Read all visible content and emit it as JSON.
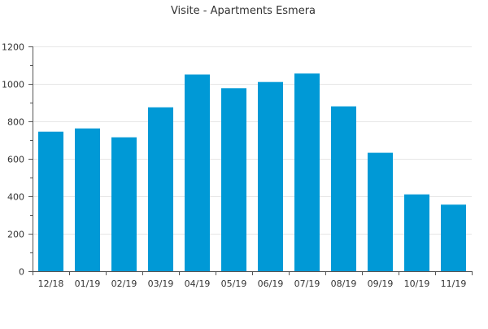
{
  "chart_data": {
    "type": "bar",
    "title": "Visite - Apartments Esmera",
    "xlabel": "",
    "ylabel": "",
    "categories": [
      "12/18",
      "01/19",
      "02/19",
      "03/19",
      "04/19",
      "05/19",
      "06/19",
      "07/19",
      "08/19",
      "09/19",
      "10/19",
      "11/19"
    ],
    "values": [
      745,
      762,
      715,
      875,
      1050,
      977,
      1010,
      1055,
      880,
      632,
      410,
      355
    ],
    "ylim": [
      0,
      1200
    ],
    "yticks": [
      0,
      200,
      400,
      600,
      800,
      1000,
      1200
    ],
    "grid": true,
    "bar_color": "#0099d6"
  }
}
